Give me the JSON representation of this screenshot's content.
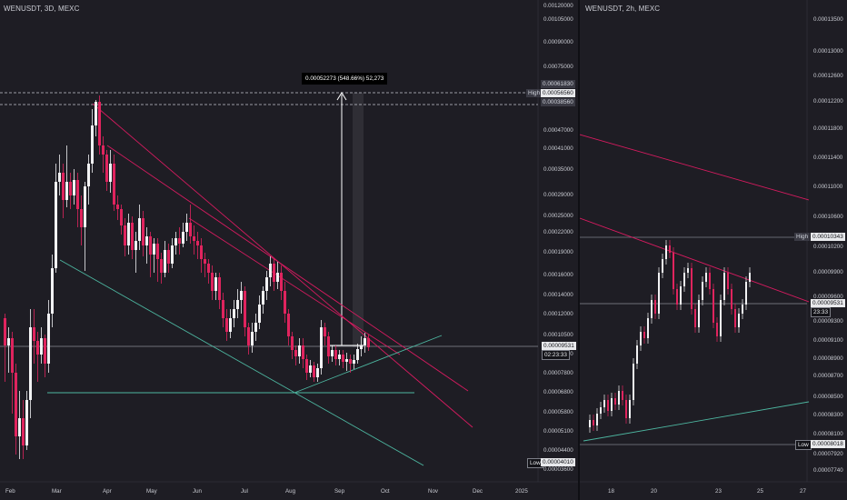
{
  "left_chart": {
    "title": "WENUSDT, 3D, MEXC",
    "price_axis": [
      "0.00120000",
      "0.00105000",
      "0.00090000",
      "0.00075000",
      "0.00047000",
      "0.00041000",
      "0.00035000",
      "0.00029000",
      "0.00025000",
      "0.00022000",
      "0.00019000",
      "0.00016000",
      "0.00014000",
      "0.00012000",
      "0.00010500",
      "0.00009000",
      "0.00007800",
      "0.00006800",
      "0.00005800",
      "0.00005100",
      "0.00004400",
      "0.00003600"
    ],
    "time_axis": [
      "Feb",
      "Mar",
      "Apr",
      "May",
      "Jun",
      "Jul",
      "Aug",
      "Sep",
      "Oct",
      "Nov",
      "Dec",
      "2025"
    ],
    "current_price": "0.00009531",
    "countdown": "02:23:33",
    "high_label": "High",
    "high_value": "0.00056560",
    "measure_level_1": "0.00061830",
    "measure_level_2": "0.00038560",
    "low_label": "Low",
    "low_value": "0.00004010",
    "measure_text": "0.00052273 (548.66%) 52,273"
  },
  "right_chart": {
    "title": "WENUSDT, 2h, MEXC",
    "price_axis": [
      "0.00013500",
      "0.00013000",
      "0.00012600",
      "0.00012200",
      "0.00011800",
      "0.00011400",
      "0.00011000",
      "0.00010600",
      "0.00010200",
      "0.00009900",
      "0.00009600",
      "0.00009300",
      "0.00009100",
      "0.00008900",
      "0.00008700",
      "0.00008500",
      "0.00008300",
      "0.00008100",
      "0.00007920",
      "0.00007740"
    ],
    "time_axis": [
      "18",
      "20",
      "23",
      "25",
      "27"
    ],
    "current_price": "0.00009531",
    "countdown": "23:33",
    "high_label": "High",
    "high_value": "0.00010343",
    "low_label": "Low",
    "low_value": "0.00008018"
  },
  "colors": {
    "background": "#1e1d24",
    "bull": "#f2f2f4",
    "bear": "#e0245e",
    "trendline_red": "#d81b60",
    "trendline_green": "#4db6a0",
    "measure_arrow": "#ffffff"
  }
}
